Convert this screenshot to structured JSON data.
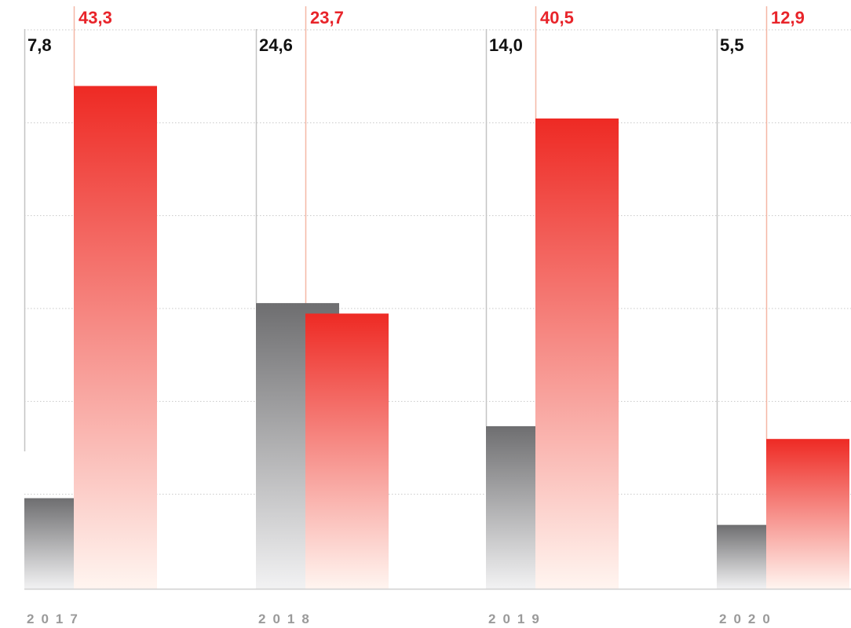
{
  "chart_data": {
    "type": "bar",
    "categories": [
      "2017",
      "2018",
      "2019",
      "2020"
    ],
    "series": [
      {
        "values": [
          7.8,
          24.6,
          14.0,
          5.5
        ],
        "color": "#6e6e70"
      },
      {
        "values": [
          43.3,
          23.7,
          40.5,
          12.9
        ],
        "color": "#ee2a24"
      }
    ],
    "data_labels": [
      [
        "7,8",
        "24,6",
        "14,0",
        "5,5"
      ],
      [
        "43,3",
        "23,7",
        "40,5",
        "12,9"
      ]
    ],
    "ylim": [
      0,
      48
    ],
    "grid": true,
    "grid_style": "dotted",
    "colors": {
      "series_1_label": "#111111",
      "series_2_label": "#e8242a",
      "year_label": "#9a9a9a",
      "grid": "#c8c8c8",
      "axis": "#d0d0d0",
      "series_1_guide": "#c4c4c4",
      "series_2_guide": "#f4b7a6"
    }
  }
}
